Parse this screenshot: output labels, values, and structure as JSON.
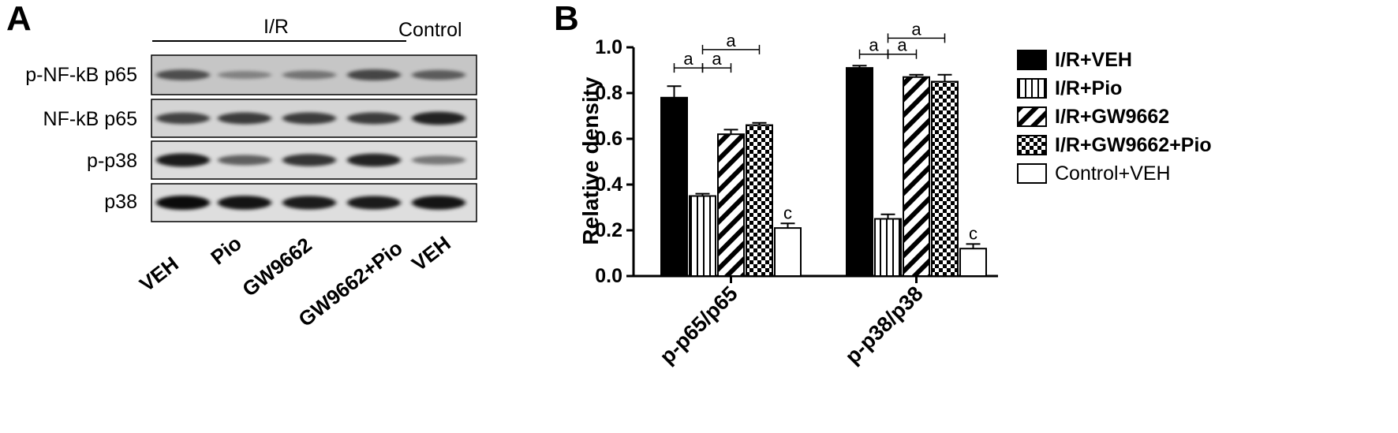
{
  "panel_a": {
    "letter": "A",
    "group_ir": "I/R",
    "group_control": "Control",
    "rows": [
      "p-NF-kB p65",
      "NF-kB p65",
      "p-p38",
      "p38"
    ],
    "lanes": [
      "VEH",
      "Pio",
      "GW9662",
      "GW9662+Pio",
      "VEH"
    ],
    "band_intensity": [
      [
        0.55,
        0.2,
        0.3,
        0.6,
        0.45
      ],
      [
        0.65,
        0.7,
        0.7,
        0.7,
        0.85
      ],
      [
        0.9,
        0.5,
        0.75,
        0.85,
        0.35
      ],
      [
        1.0,
        0.95,
        0.9,
        0.9,
        0.95
      ]
    ]
  },
  "chart_data": {
    "type": "bar",
    "panel_letter": "B",
    "ylabel": "Relative density",
    "ylim": [
      0,
      1.0
    ],
    "yticks": [
      "0.0",
      "0.2",
      "0.4",
      "0.6",
      "0.8",
      "1.0"
    ],
    "categories": [
      "p-p65/p65",
      "p-p38/p38"
    ],
    "legend_position": "right",
    "series": [
      {
        "name": "I/R+VEH",
        "pattern": "solid",
        "values": [
          0.78,
          0.91
        ],
        "errors": [
          0.05,
          0.01
        ]
      },
      {
        "name": "I/R+Pio",
        "pattern": "vertical",
        "values": [
          0.35,
          0.25
        ],
        "errors": [
          0.01,
          0.02
        ]
      },
      {
        "name": "I/R+GW9662",
        "pattern": "diagonal",
        "values": [
          0.62,
          0.87
        ],
        "errors": [
          0.02,
          0.01
        ]
      },
      {
        "name": "I/R+GW9662+Pio",
        "pattern": "checker",
        "values": [
          0.66,
          0.85
        ],
        "errors": [
          0.01,
          0.03
        ]
      },
      {
        "name": "Control+VEH",
        "pattern": "open",
        "values": [
          0.21,
          0.12
        ],
        "errors": [
          0.02,
          0.02
        ]
      }
    ],
    "bar_labels": [
      {
        "category": 0,
        "series": 4,
        "text": "c"
      },
      {
        "category": 1,
        "series": 4,
        "text": "c"
      }
    ],
    "brackets": [
      {
        "category": 0,
        "from": 0,
        "to": 1,
        "y": 0.91,
        "text": "a"
      },
      {
        "category": 0,
        "from": 1,
        "to": 2,
        "y": 0.91,
        "text": "a"
      },
      {
        "category": 0,
        "from": 1,
        "to": 3,
        "y": 0.99,
        "text": "a"
      },
      {
        "category": 1,
        "from": 0,
        "to": 1,
        "y": 0.97,
        "text": "a"
      },
      {
        "category": 1,
        "from": 1,
        "to": 2,
        "y": 0.97,
        "text": "a"
      },
      {
        "category": 1,
        "from": 1,
        "to": 3,
        "y": 1.04,
        "text": "a"
      }
    ]
  }
}
